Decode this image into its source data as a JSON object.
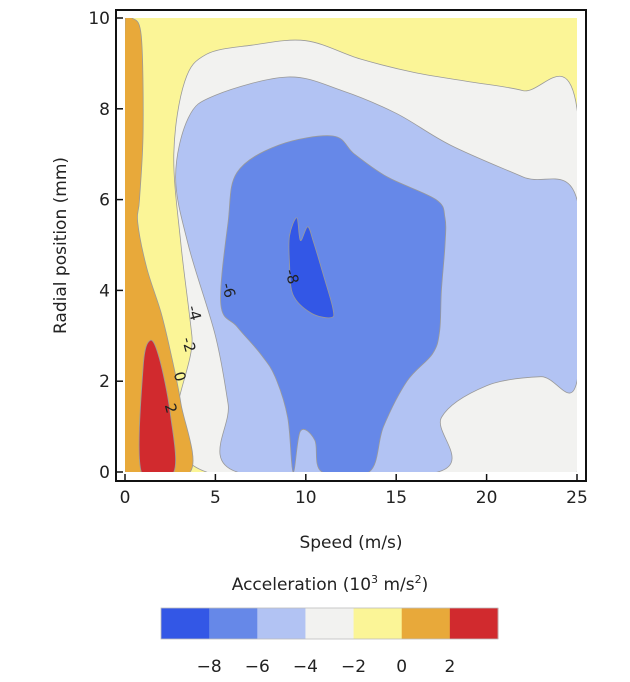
{
  "chart_data": {
    "type": "contour",
    "xlabel": "Speed (m/s)",
    "ylabel": "Radial position (mm)",
    "xlim": [
      0,
      25
    ],
    "ylim": [
      0,
      10
    ],
    "x_ticks": [
      "0",
      "5",
      "10",
      "15",
      "20",
      "25"
    ],
    "y_ticks": [
      "0",
      "2",
      "4",
      "6",
      "8",
      "10"
    ],
    "grid": false,
    "colorbar": {
      "title_prefix": "Acceleration (10",
      "title_exp": "3",
      "title_suffix": " m/s",
      "title_exp2": "2",
      "title_close": ")",
      "levels": [
        "−8",
        "−6",
        "−4",
        "−2",
        "0",
        "2"
      ],
      "colors": [
        "#3357e6",
        "#6688e8",
        "#b2c3f3",
        "#f2f2f0",
        "#fbf597",
        "#e8a93a",
        "#d12a2e"
      ]
    },
    "contour_labels": [
      {
        "text": "-8",
        "x": 9.2,
        "y": 4.3
      },
      {
        "text": "-6",
        "x": 5.7,
        "y": 4.0
      },
      {
        "text": "-4",
        "x": 3.8,
        "y": 3.5
      },
      {
        "text": "-2",
        "x": 3.5,
        "y": 2.8
      },
      {
        "text": "0",
        "x": 3.0,
        "y": 2.1
      },
      {
        "text": "2",
        "x": 2.5,
        "y": 1.4
      }
    ],
    "regions": [
      {
        "level": "2",
        "color": "#d12a2e",
        "polygon": [
          [
            0.9,
            0
          ],
          [
            1.0,
            2.3
          ],
          [
            1.4,
            2.9
          ],
          [
            1.9,
            2.5
          ],
          [
            2.5,
            1.3
          ],
          [
            2.7,
            0
          ]
        ]
      },
      {
        "level": "0",
        "color": "#e8a93a",
        "polygon": [
          [
            0,
            0
          ],
          [
            0,
            10
          ],
          [
            0.4,
            10
          ],
          [
            0.9,
            9.6
          ],
          [
            1.0,
            7.5
          ],
          [
            0.8,
            6.0
          ],
          [
            0.7,
            5.5
          ],
          [
            1.2,
            4.5
          ],
          [
            2.0,
            3.5
          ],
          [
            2.6,
            2.5
          ],
          [
            3.1,
            1.5
          ],
          [
            3.6,
            0
          ]
        ]
      },
      {
        "level": "-2",
        "color": "#f2f2f0",
        "polygon": [
          [
            4.5,
            0
          ],
          [
            3.7,
            3
          ],
          [
            3.1,
            5
          ],
          [
            2.7,
            7
          ],
          [
            3.3,
            8.6
          ],
          [
            4.5,
            9.2
          ],
          [
            7,
            9.4
          ],
          [
            10,
            9.5
          ],
          [
            13,
            9.1
          ],
          [
            16,
            8.8
          ],
          [
            19,
            8.6
          ],
          [
            22,
            8.4
          ],
          [
            25,
            8.0
          ],
          [
            25,
            0
          ]
        ]
      },
      {
        "level": "-4",
        "color": "#b2c3f3",
        "polygon": [
          [
            6.2,
            0
          ],
          [
            5.7,
            1.5
          ],
          [
            5,
            3
          ],
          [
            3.5,
            5
          ],
          [
            2.8,
            6.5
          ],
          [
            3.5,
            7.8
          ],
          [
            5,
            8.3
          ],
          [
            9,
            8.7
          ],
          [
            12,
            8.4
          ],
          [
            15,
            7.9
          ],
          [
            18,
            7.2
          ],
          [
            22,
            6.5
          ],
          [
            25,
            6.0
          ],
          [
            25,
            2.0
          ],
          [
            23,
            2.1
          ],
          [
            20,
            1.9
          ],
          [
            17.5,
            1.2
          ],
          [
            17.3,
            0
          ]
        ]
      },
      {
        "level": "-6",
        "color": "#6688e8",
        "polygon": [
          [
            9.3,
            0
          ],
          [
            9.7,
            0.9
          ],
          [
            10.5,
            0.7
          ],
          [
            10.9,
            0
          ],
          [
            13.5,
            0
          ],
          [
            14.3,
            1.0
          ],
          [
            15.6,
            2.0
          ],
          [
            17.0,
            2.6
          ],
          [
            17.4,
            3.1
          ],
          [
            17.5,
            4.0
          ],
          [
            17.7,
            5.0
          ],
          [
            17.7,
            5.6
          ],
          [
            17.2,
            6.0
          ],
          [
            14.5,
            6.5
          ],
          [
            12.7,
            7.0
          ],
          [
            11.5,
            7.4
          ],
          [
            8.5,
            7.2
          ],
          [
            6.2,
            6.6
          ],
          [
            5.7,
            5.5
          ],
          [
            5.3,
            3.7
          ],
          [
            6.2,
            3.2
          ],
          [
            7.5,
            2.6
          ],
          [
            8.3,
            2.1
          ],
          [
            9.0,
            1.2
          ]
        ]
      },
      {
        "level": "-8",
        "color": "#3357e6",
        "polygon": [
          [
            9.1,
            5.2
          ],
          [
            9.5,
            5.6
          ],
          [
            9.7,
            5.1
          ],
          [
            10.1,
            5.4
          ],
          [
            10.4,
            5.1
          ],
          [
            11.0,
            4.3
          ],
          [
            11.5,
            3.6
          ],
          [
            11.4,
            3.4
          ],
          [
            10.3,
            3.5
          ],
          [
            9.3,
            3.9
          ],
          [
            9.1,
            4.6
          ]
        ]
      }
    ]
  }
}
